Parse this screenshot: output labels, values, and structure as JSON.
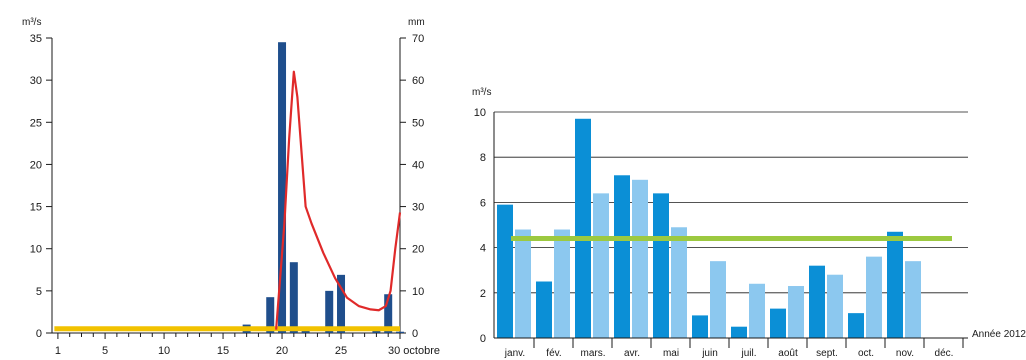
{
  "colors": {
    "bar_dark": "#1f4e8c",
    "line_red": "#e02a2a",
    "line_yellow": "#f2c200",
    "bar_blue": "#0b8fd6",
    "bar_light": "#8cc8ef",
    "line_green": "#9cc940"
  },
  "chart_data": [
    {
      "type": "bar",
      "x_label_end": "30 octobre",
      "left_unit": "m³/s",
      "right_unit": "mm",
      "left_ticks": [
        "0",
        "5",
        "10",
        "15",
        "20",
        "25",
        "30",
        "35"
      ],
      "right_ticks": [
        "0",
        "10",
        "20",
        "30",
        "40",
        "50",
        "60",
        "70"
      ],
      "x_ticks": [
        "1",
        "5",
        "10",
        "15",
        "20",
        "25",
        "30"
      ],
      "ylim_left": [
        0,
        35
      ],
      "ylim_right": [
        0,
        70
      ],
      "xlim": [
        1,
        30
      ],
      "series": [
        {
          "type": "bar",
          "axis": "right",
          "x": [
            17,
            19,
            20,
            21,
            22,
            24,
            25,
            28,
            29,
            30
          ],
          "values": [
            2,
            8.5,
            69,
            16.8,
            1.2,
            10,
            13.8,
            1.2,
            9.2,
            0.3
          ]
        },
        {
          "type": "line",
          "axis": "left",
          "points": [
            [
              19.5,
              0.4
            ],
            [
              20.2,
              13
            ],
            [
              20.6,
              23
            ],
            [
              21,
              31
            ],
            [
              21.3,
              28
            ],
            [
              22,
              15
            ],
            [
              22.5,
              13
            ],
            [
              23.5,
              9.5
            ],
            [
              24.5,
              6.5
            ],
            [
              25.5,
              4.2
            ],
            [
              26.5,
              3.2
            ],
            [
              27.5,
              2.8
            ],
            [
              28.2,
              2.7
            ],
            [
              28.8,
              3.2
            ],
            [
              29.2,
              5
            ],
            [
              29.6,
              10
            ],
            [
              30,
              14.3
            ]
          ]
        },
        {
          "type": "line",
          "axis": "left",
          "points": [
            [
              0.7,
              0.5
            ],
            [
              30,
              0.5
            ]
          ]
        }
      ]
    },
    {
      "type": "bar",
      "y_unit": "m³/s",
      "categories": [
        "janv.",
        "fév.",
        "mars.",
        "avr.",
        "mai",
        "juin",
        "juil.",
        "août",
        "sept.",
        "oct.",
        "nov.",
        "déc."
      ],
      "y_ticks": [
        "0",
        "2",
        "4",
        "6",
        "8",
        "10"
      ],
      "ylim": [
        0,
        10
      ],
      "x_annotation": "Année 2012",
      "series": [
        {
          "values": [
            5.9,
            2.5,
            9.7,
            7.2,
            6.4,
            1.0,
            0.5,
            1.3,
            3.2,
            1.1,
            4.7,
            null
          ]
        },
        {
          "values": [
            4.8,
            4.8,
            6.4,
            7.0,
            4.9,
            3.4,
            2.4,
            2.3,
            2.8,
            3.6,
            3.4,
            null
          ]
        }
      ],
      "reference_line": 4.4
    }
  ]
}
